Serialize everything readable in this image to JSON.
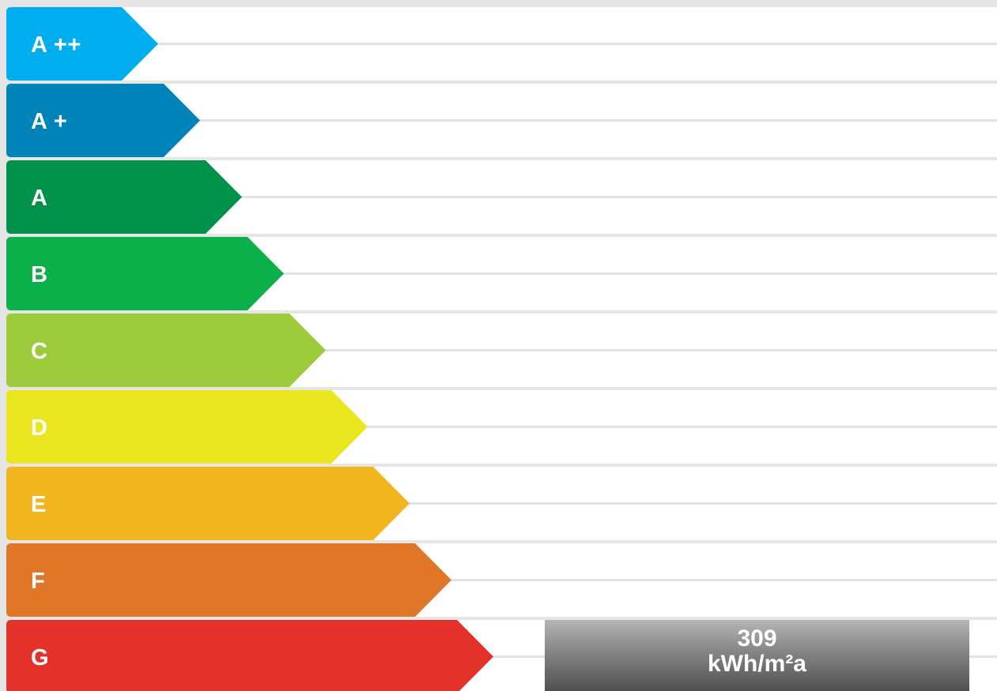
{
  "chart_data": {
    "type": "energy-rating-scale",
    "categories": [
      "A ++",
      "A +",
      "A",
      "B",
      "C",
      "D",
      "E",
      "F",
      "G"
    ],
    "colors": [
      "#00aeef",
      "#0083b8",
      "#00924a",
      "#0cb04b",
      "#9dcb3b",
      "#eae720",
      "#f1b51d",
      "#e07728",
      "#e3322a"
    ],
    "current_rating": "G",
    "value": "309",
    "unit": "kWh/m²a"
  }
}
